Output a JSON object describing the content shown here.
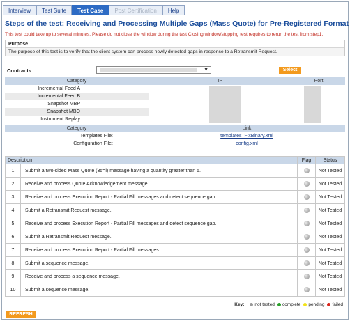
{
  "nav": {
    "tabs": [
      {
        "label": "Interview",
        "state": "normal"
      },
      {
        "label": "Test Suite",
        "state": "normal"
      },
      {
        "label": "Test Case",
        "state": "active"
      },
      {
        "label": "Post Certification",
        "state": "disabled"
      },
      {
        "label": "Help",
        "state": "normal"
      }
    ]
  },
  "page": {
    "title": "Steps of the test: Receiving and Processing Multiple Gaps (Mass Quote) for Pre-Registered Format",
    "warning": "This test could take up to several minutes. Please do not close the window during the test Closing window/stopping test requires to rerun the test from step1."
  },
  "purpose": {
    "heading": "Purpose",
    "text": "The purpose of this test is to verify that the client system can process newly detected gaps in response to a Retransmit Request."
  },
  "contracts": {
    "label": "Contracts :",
    "select_label": "Select"
  },
  "feeds": {
    "headers": {
      "category": "Category",
      "ip": "IP",
      "port": "Port"
    },
    "rows": [
      {
        "category": "Incremental Feed A"
      },
      {
        "category": "Incremental Feed B"
      },
      {
        "category": "Snapshot MBP"
      },
      {
        "category": "Snapshot MBO"
      },
      {
        "category": "Instrument Replay"
      }
    ]
  },
  "links": {
    "headers": {
      "category": "Category",
      "link": "Link"
    },
    "rows": [
      {
        "category": "Templates File:",
        "link": "templates_FixBinary.xml"
      },
      {
        "category": "Configuration File:",
        "link": "config.xml"
      }
    ]
  },
  "steps": {
    "headers": {
      "description": "Description",
      "flag": "Flag",
      "status": "Status"
    },
    "rows": [
      {
        "num": "1",
        "desc": "Submit a two-sided Mass Quote (35=i) message having a quantity greater than 5.",
        "status": "Not Tested"
      },
      {
        "num": "2",
        "desc": "Receive and process Quote Acknowledgement message.",
        "status": "Not Tested"
      },
      {
        "num": "3",
        "desc": "Receive and process Execution Report - Partial Fill messages and detect sequence gap.",
        "status": "Not Tested"
      },
      {
        "num": "4",
        "desc": "Submit a Retransmit Request message.",
        "status": "Not Tested"
      },
      {
        "num": "5",
        "desc": "Receive and process Execution Report - Partial Fill messages and detect sequence gap.",
        "status": "Not Tested"
      },
      {
        "num": "6",
        "desc": "Submit a Retransmit Request message.",
        "status": "Not Tested"
      },
      {
        "num": "7",
        "desc": "Receive and process Execution Report - Partial Fill messages.",
        "status": "Not Tested"
      },
      {
        "num": "8",
        "desc": "Submit a sequence message.",
        "status": "Not Tested"
      },
      {
        "num": "9",
        "desc": "Receive and process a sequence message.",
        "status": "Not Tested"
      },
      {
        "num": "10",
        "desc": "Submit a sequence message.",
        "status": "Not Tested"
      }
    ]
  },
  "key": {
    "label": "Key:",
    "items": [
      {
        "label": "not tested",
        "color": "#9a9a9a"
      },
      {
        "label": "complete",
        "color": "#2aa02a"
      },
      {
        "label": "pending",
        "color": "#f2e21a"
      },
      {
        "label": "failed",
        "color": "#d9261c"
      }
    ]
  },
  "refresh": {
    "label": "REFRESH"
  },
  "colors": {
    "accent": "#2d6bc4",
    "title": "#1d4f9c",
    "warning": "#c0281d",
    "button": "#f39a1e",
    "header_row": "#c9d7e8"
  }
}
